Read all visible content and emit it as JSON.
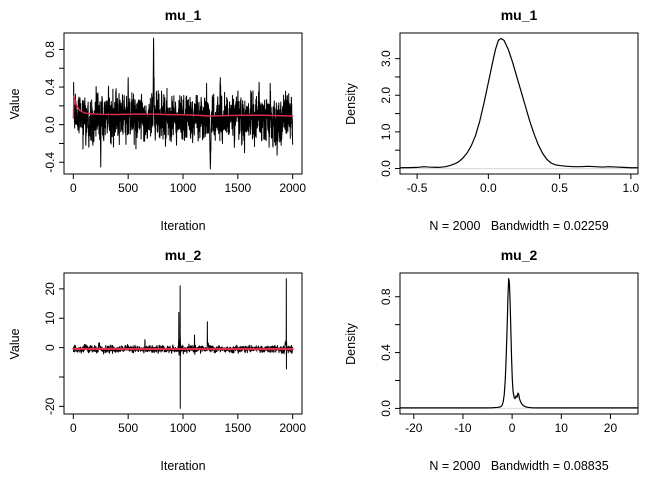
{
  "page": {
    "background": "#ffffff",
    "trace_color": "#000000",
    "smooth_line_color": "#e02a4c",
    "zero_line_color": "#d9d9d9",
    "axis_color": "#000000"
  },
  "chart_data": [
    {
      "id": "trace-mu1",
      "type": "line",
      "variant": "trace",
      "title": "mu_1",
      "xlabel": "Iteration",
      "ylabel": "Value",
      "xlim": [
        -85,
        2085
      ],
      "ylim": [
        -0.525,
        0.975
      ],
      "grid": false,
      "zero_line": false,
      "xticks": {
        "values": [
          0,
          500,
          1000,
          1500,
          2000
        ],
        "labels": [
          "0",
          "500",
          "1000",
          "1500",
          "2000"
        ]
      },
      "yticks": {
        "values": [
          -0.4,
          0.0,
          0.4,
          0.8
        ],
        "labels": [
          "-0.4",
          "0.0",
          "0.4",
          "0.8"
        ],
        "minor": [
          -0.2,
          0.2,
          0.6
        ]
      },
      "series": [
        {
          "name": "mcmc-trace",
          "color": "#000000",
          "width": 1,
          "generator": {
            "n": 2000,
            "seed": 1234,
            "baseline": 0.07,
            "sd": 0.115,
            "ar": 0.35,
            "events": [
              {
                "start": 1,
                "values": [
                  0.2,
                  0.45,
                  0.3
                ]
              },
              {
                "start": 246,
                "values": [
                  -0.05,
                  -0.2,
                  -0.33,
                  -0.45,
                  -0.3,
                  -0.12
                ]
              },
              {
                "start": 497,
                "values": [
                  0.25,
                  0.4,
                  0.5,
                  0.42,
                  0.28,
                  0.15
                ]
              },
              {
                "start": 726,
                "values": [
                  0.2,
                  0.35,
                  0.5,
                  0.68,
                  0.85,
                  0.92,
                  0.75,
                  0.55,
                  0.38,
                  0.5,
                  0.3,
                  0.18
                ]
              },
              {
                "start": 1243,
                "values": [
                  -0.12,
                  -0.22,
                  -0.3,
                  -0.25,
                  -0.38,
                  -0.47,
                  -0.35,
                  -0.42,
                  -0.3,
                  -0.2,
                  -0.28,
                  -0.15,
                  -0.05
                ]
              },
              {
                "start": 1336,
                "values": [
                  0.3,
                  0.45,
                  0.35,
                  0.5,
                  0.4,
                  0.3,
                  0.42,
                  0.28
                ]
              },
              {
                "start": 1692,
                "values": [
                  0.3,
                  0.45,
                  0.35,
                  0.2
                ]
              }
            ]
          }
        },
        {
          "name": "running-mean",
          "color": "#e02a4c",
          "width": 1.4,
          "points": [
            [
              1,
              0.07
            ],
            [
              4,
              0.3
            ],
            [
              12,
              0.27
            ],
            [
              30,
              0.2
            ],
            [
              60,
              0.15
            ],
            [
              100,
              0.125
            ],
            [
              160,
              0.115
            ],
            [
              250,
              0.11
            ],
            [
              400,
              0.108
            ],
            [
              550,
              0.112
            ],
            [
              700,
              0.113
            ],
            [
              850,
              0.108
            ],
            [
              1000,
              0.105
            ],
            [
              1120,
              0.1
            ],
            [
              1250,
              0.092
            ],
            [
              1400,
              0.097
            ],
            [
              1550,
              0.1
            ],
            [
              1700,
              0.1
            ],
            [
              1850,
              0.096
            ],
            [
              2000,
              0.092
            ]
          ]
        }
      ]
    },
    {
      "id": "density-mu1",
      "type": "line",
      "variant": "density",
      "title": "mu_1",
      "caption": "N = 2000   Bandwidth = 0.02259",
      "ylabel": "Density",
      "xlim": [
        -0.62,
        1.05
      ],
      "ylim": [
        -0.15,
        3.7
      ],
      "grid": false,
      "zero_line": true,
      "xticks": {
        "values": [
          -0.5,
          0.0,
          0.5,
          1.0
        ],
        "labels": [
          "-0.5",
          "0.0",
          "0.5",
          "1.0"
        ]
      },
      "yticks": {
        "values": [
          0.0,
          1.0,
          2.0,
          3.0
        ],
        "labels": [
          "0.0",
          "1.0",
          "2.0",
          "3.0"
        ],
        "minor": [
          0.5,
          1.5,
          2.5
        ]
      },
      "series": [
        {
          "name": "density-curve",
          "color": "#000000",
          "width": 1.2,
          "points": [
            [
              -0.62,
              0.02
            ],
            [
              -0.55,
              0.025
            ],
            [
              -0.5,
              0.03
            ],
            [
              -0.45,
              0.05
            ],
            [
              -0.42,
              0.04
            ],
            [
              -0.35,
              0.03
            ],
            [
              -0.3,
              0.05
            ],
            [
              -0.27,
              0.08
            ],
            [
              -0.24,
              0.12
            ],
            [
              -0.21,
              0.18
            ],
            [
              -0.18,
              0.28
            ],
            [
              -0.15,
              0.42
            ],
            [
              -0.12,
              0.62
            ],
            [
              -0.09,
              0.9
            ],
            [
              -0.06,
              1.3
            ],
            [
              -0.03,
              1.8
            ],
            [
              0,
              2.35
            ],
            [
              0.03,
              2.9
            ],
            [
              0.05,
              3.25
            ],
            [
              0.07,
              3.5
            ],
            [
              0.09,
              3.55
            ],
            [
              0.11,
              3.5
            ],
            [
              0.14,
              3.25
            ],
            [
              0.17,
              2.9
            ],
            [
              0.2,
              2.5
            ],
            [
              0.23,
              2.1
            ],
            [
              0.26,
              1.7
            ],
            [
              0.29,
              1.3
            ],
            [
              0.32,
              0.95
            ],
            [
              0.35,
              0.65
            ],
            [
              0.38,
              0.42
            ],
            [
              0.41,
              0.25
            ],
            [
              0.44,
              0.15
            ],
            [
              0.47,
              0.1
            ],
            [
              0.5,
              0.08
            ],
            [
              0.55,
              0.06
            ],
            [
              0.6,
              0.05
            ],
            [
              0.65,
              0.05
            ],
            [
              0.7,
              0.06
            ],
            [
              0.75,
              0.05
            ],
            [
              0.8,
              0.04
            ],
            [
              0.85,
              0.05
            ],
            [
              0.9,
              0.04
            ],
            [
              0.95,
              0.03
            ],
            [
              1.0,
              0.02
            ],
            [
              1.05,
              0.02
            ]
          ]
        }
      ]
    },
    {
      "id": "trace-mu2",
      "type": "line",
      "variant": "trace",
      "title": "mu_2",
      "xlabel": "Iteration",
      "ylabel": "Value",
      "xlim": [
        -85,
        2085
      ],
      "ylim": [
        -22.6,
        25.4
      ],
      "grid": false,
      "zero_line": false,
      "xticks": {
        "values": [
          0,
          500,
          1000,
          1500,
          2000
        ],
        "labels": [
          "0",
          "500",
          "1000",
          "1500",
          "2000"
        ]
      },
      "yticks": {
        "values": [
          -20,
          0,
          10,
          20
        ],
        "labels": [
          "-20",
          "0",
          "10",
          "20"
        ],
        "minor": [
          -10
        ]
      },
      "series": [
        {
          "name": "mcmc-trace",
          "color": "#000000",
          "width": 1,
          "generator": {
            "n": 2000,
            "seed": 777,
            "baseline": -0.5,
            "sd": 0.5,
            "ar": 0.4,
            "events": [
              {
                "start": 228,
                "values": [
                  0.1,
                  0.6,
                  1.1,
                  1.5,
                  1.3,
                  1.6,
                  1.4,
                  1.7,
                  1.2,
                  1.5,
                  1.0,
                  0.6,
                  0.2,
                  -0.2
                ]
              },
              {
                "start": 560,
                "values": [
                  0.3,
                  0.8,
                  0.4,
                  -0.1
                ]
              },
              {
                "start": 650,
                "values": [
                  0.2,
                  1.4,
                  2.7,
                  1.6,
                  0.3,
                  -0.3
                ]
              },
              {
                "start": 956,
                "values": [
                  0.5,
                  -1.2,
                  1.0,
                  2.5,
                  1.2,
                  12.0,
                  3.0,
                  -2.5,
                  1.0,
                  -1.8,
                  2.2,
                  0.8,
                  -1.2,
                  1.5,
                  -0.8,
                  0.5,
                  2.0,
                  21.0,
                  -20.7,
                  3.5,
                  -2.8,
                  1.2,
                  -0.8,
                  0.4,
                  -0.3
                ]
              },
              {
                "start": 1052,
                "values": [
                  0.3,
                  1.2,
                  0.8,
                  0.2,
                  -0.6,
                  -1.4,
                  -0.8,
                  0.3
                ]
              },
              {
                "start": 1102,
                "values": [
                  0.5,
                  1.5,
                  4.3,
                  1.8,
                  -0.8,
                  -2.3,
                  -1.2,
                  0.3
                ]
              },
              {
                "start": 1158,
                "values": [
                  -1.3,
                  -1.9,
                  -1.4,
                  -0.8
                ]
              },
              {
                "start": 1220,
                "values": [
                  0.8,
                  8.8,
                  2.8,
                  1.4,
                  1.9,
                  1.1,
                  1.6,
                  0.9,
                  1.3,
                  0.7,
                  1.4,
                  1.0,
                  0.6,
                  0.2,
                  -0.2,
                  0.5,
                  0.8,
                  0.3
                ]
              },
              {
                "start": 1928,
                "values": [
                  0.3,
                  0.9,
                  1.4,
                  1.0,
                  1.9,
                  1.5,
                  1.1,
                  2.0,
                  1.6,
                  2.4,
                  1.8,
                  2.1,
                  1.5,
                  23.5,
                  -7.3,
                  2.2,
                  1.0,
                  -0.6,
                  0.3,
                  -0.3
                ]
              }
            ]
          }
        },
        {
          "name": "running-mean",
          "color": "#e02a4c",
          "width": 2.2,
          "points": [
            [
              1,
              -0.42
            ],
            [
              100,
              -0.45
            ],
            [
              500,
              -0.48
            ],
            [
              1000,
              -0.5
            ],
            [
              1500,
              -0.5
            ],
            [
              2000,
              -0.52
            ]
          ]
        }
      ]
    },
    {
      "id": "density-mu2",
      "type": "line",
      "variant": "density",
      "title": "mu_2",
      "caption": "N = 2000   Bandwidth = 0.08835",
      "ylabel": "Density",
      "xlim": [
        -22.8,
        25.6
      ],
      "ylim": [
        -0.04,
        0.97
      ],
      "grid": false,
      "zero_line": true,
      "xticks": {
        "values": [
          -20,
          -10,
          0,
          10,
          20
        ],
        "labels": [
          "-20",
          "-10",
          "0",
          "10",
          "20"
        ]
      },
      "yticks": {
        "values": [
          0.0,
          0.4,
          0.8
        ],
        "labels": [
          "0.0",
          "0.4",
          "0.8"
        ],
        "minor": [
          0.2,
          0.6
        ]
      },
      "series": [
        {
          "name": "density-curve",
          "color": "#000000",
          "width": 1.2,
          "points": [
            [
              -22.8,
              0.004
            ],
            [
              -20,
              0.004
            ],
            [
              -15,
              0.004
            ],
            [
              -10,
              0.004
            ],
            [
              -7,
              0.004
            ],
            [
              -5,
              0.004
            ],
            [
              -4,
              0.005
            ],
            [
              -3,
              0.007
            ],
            [
              -2.5,
              0.01
            ],
            [
              -2.2,
              0.015
            ],
            [
              -2.0,
              0.025
            ],
            [
              -1.8,
              0.05
            ],
            [
              -1.6,
              0.1
            ],
            [
              -1.4,
              0.2
            ],
            [
              -1.2,
              0.37
            ],
            [
              -1.0,
              0.6
            ],
            [
              -0.85,
              0.8
            ],
            [
              -0.7,
              0.93
            ],
            [
              -0.55,
              0.9
            ],
            [
              -0.4,
              0.75
            ],
            [
              -0.25,
              0.55
            ],
            [
              -0.1,
              0.35
            ],
            [
              0.05,
              0.2
            ],
            [
              0.2,
              0.12
            ],
            [
              0.4,
              0.08
            ],
            [
              0.6,
              0.07
            ],
            [
              0.8,
              0.09
            ],
            [
              1.0,
              0.08
            ],
            [
              1.2,
              0.11
            ],
            [
              1.35,
              0.1
            ],
            [
              1.5,
              0.07
            ],
            [
              1.7,
              0.05
            ],
            [
              2.0,
              0.03
            ],
            [
              2.3,
              0.02
            ],
            [
              2.7,
              0.012
            ],
            [
              3.2,
              0.008
            ],
            [
              4,
              0.005
            ],
            [
              5,
              0.004
            ],
            [
              7,
              0.004
            ],
            [
              10,
              0.004
            ],
            [
              15,
              0.004
            ],
            [
              20,
              0.004
            ],
            [
              25,
              0.004
            ],
            [
              25.6,
              0.004
            ]
          ]
        }
      ]
    }
  ]
}
